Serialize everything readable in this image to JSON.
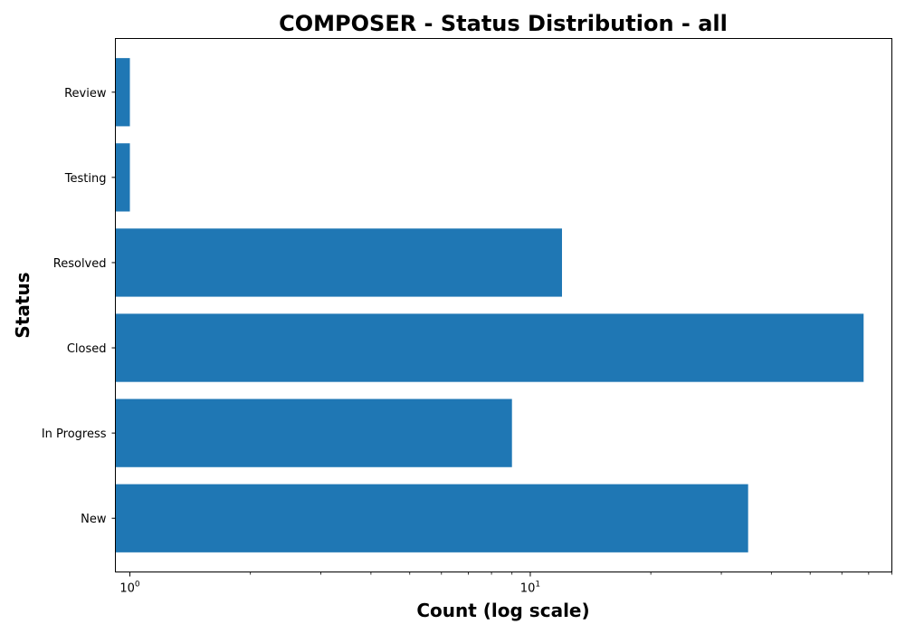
{
  "colors": {
    "bar": "#1f77b4",
    "axis": "#000000",
    "background": "#ffffff"
  },
  "chart_data": {
    "type": "bar",
    "orientation": "horizontal",
    "title": "COMPOSER - Status Distribution - all",
    "xlabel": "Count (log scale)",
    "ylabel": "Status",
    "x_scale": "log",
    "xlim": [
      0.92,
      80
    ],
    "categories": [
      "Review",
      "Testing",
      "Resolved",
      "Closed",
      "In Progress",
      "New"
    ],
    "values": [
      1,
      1,
      12,
      68,
      9,
      35
    ],
    "x_ticks": [
      {
        "value": 1,
        "base": "10",
        "exp": "0"
      },
      {
        "value": 10,
        "base": "10",
        "exp": "1"
      }
    ],
    "grid": false,
    "legend": "none"
  }
}
